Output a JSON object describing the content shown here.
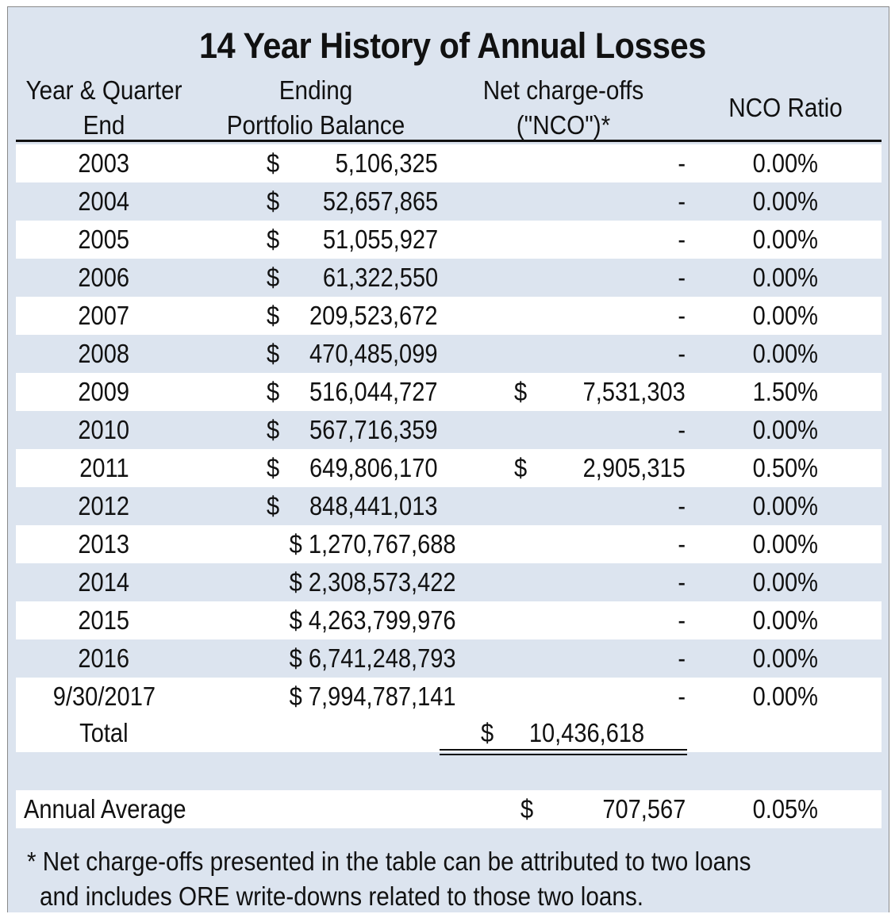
{
  "title": "14 Year History of Annual Losses",
  "headers": {
    "year_line1": "Year & Quarter",
    "year_line2": "End",
    "balance_line1": "Ending",
    "balance_line2": "Portfolio Balance",
    "nco_line1": "Net charge-offs",
    "nco_line2": "(\"NCO\")*",
    "ratio": "NCO Ratio"
  },
  "rows": [
    {
      "year": "2003",
      "dollar": "$",
      "balance": "5,106,325",
      "nco_dollar": "",
      "nco": "-",
      "ratio": "0.00%"
    },
    {
      "year": "2004",
      "dollar": "$",
      "balance": "52,657,865",
      "nco_dollar": "",
      "nco": "-",
      "ratio": "0.00%"
    },
    {
      "year": "2005",
      "dollar": "$",
      "balance": "51,055,927",
      "nco_dollar": "",
      "nco": "-",
      "ratio": "0.00%"
    },
    {
      "year": "2006",
      "dollar": "$",
      "balance": "61,322,550",
      "nco_dollar": "",
      "nco": "-",
      "ratio": "0.00%"
    },
    {
      "year": "2007",
      "dollar": "$",
      "balance": "209,523,672",
      "nco_dollar": "",
      "nco": "-",
      "ratio": "0.00%"
    },
    {
      "year": "2008",
      "dollar": "$",
      "balance": "470,485,099",
      "nco_dollar": "",
      "nco": "-",
      "ratio": "0.00%"
    },
    {
      "year": "2009",
      "dollar": "$",
      "balance": "516,044,727",
      "nco_dollar": "$",
      "nco": "7,531,303",
      "ratio": "1.50%"
    },
    {
      "year": "2010",
      "dollar": "$",
      "balance": "567,716,359",
      "nco_dollar": "",
      "nco": "-",
      "ratio": "0.00%"
    },
    {
      "year": "2011",
      "dollar": "$",
      "balance": "649,806,170",
      "nco_dollar": "$",
      "nco": "2,905,315",
      "ratio": "0.50%"
    },
    {
      "year": "2012",
      "dollar": "$",
      "balance": "848,441,013",
      "nco_dollar": "",
      "nco": "-",
      "ratio": "0.00%"
    },
    {
      "year": "2013",
      "dollar": "",
      "balance": "$ 1,270,767,688",
      "nco_dollar": "",
      "nco": "-",
      "ratio": "0.00%"
    },
    {
      "year": "2014",
      "dollar": "",
      "balance": "$ 2,308,573,422",
      "nco_dollar": "",
      "nco": "-",
      "ratio": "0.00%"
    },
    {
      "year": "2015",
      "dollar": "",
      "balance": "$ 4,263,799,976",
      "nco_dollar": "",
      "nco": "-",
      "ratio": "0.00%"
    },
    {
      "year": "2016",
      "dollar": "",
      "balance": "$ 6,741,248,793",
      "nco_dollar": "",
      "nco": "-",
      "ratio": "0.00%"
    },
    {
      "year": "9/30/2017",
      "dollar": "",
      "balance": "$ 7,994,787,141",
      "nco_dollar": "",
      "nco": "-",
      "ratio": "0.00%"
    }
  ],
  "total": {
    "label": "Total",
    "nco_dollar": "$",
    "nco": "10,436,618"
  },
  "average": {
    "label": "Annual Average",
    "nco_dollar": "$",
    "nco": "707,567",
    "ratio": "0.05%"
  },
  "footnote": {
    "line1": "* Net charge-offs presented in the table can be attributed to two loans",
    "line2": "and includes ORE write-downs related to those two loans."
  }
}
